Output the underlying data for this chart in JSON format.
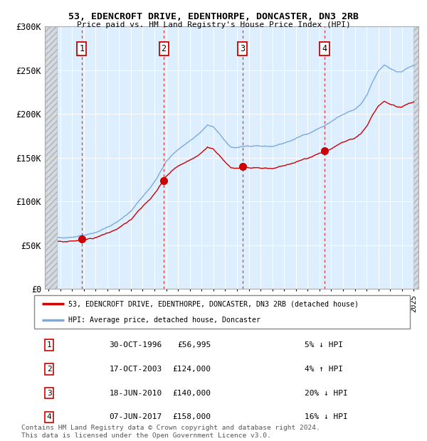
{
  "title1": "53, EDENCROFT DRIVE, EDENTHORPE, DONCASTER, DN3 2RB",
  "title2": "Price paid vs. HM Land Registry's House Price Index (HPI)",
  "ylim": [
    0,
    300000
  ],
  "yticks": [
    0,
    50000,
    100000,
    150000,
    200000,
    250000,
    300000
  ],
  "ytick_labels": [
    "£0",
    "£50K",
    "£100K",
    "£150K",
    "£200K",
    "£250K",
    "£300K"
  ],
  "xmin": 1993.7,
  "xmax": 2025.4,
  "sales": [
    {
      "num": 1,
      "year": 1996.83,
      "price": 56995
    },
    {
      "num": 2,
      "year": 2003.79,
      "price": 124000
    },
    {
      "num": 3,
      "year": 2010.46,
      "price": 140000
    },
    {
      "num": 4,
      "year": 2017.43,
      "price": 158000
    }
  ],
  "legend_line1": "53, EDENCROFT DRIVE, EDENTHORPE, DONCASTER, DN3 2RB (detached house)",
  "legend_line2": "HPI: Average price, detached house, Doncaster",
  "transactions": [
    {
      "num": 1,
      "date": "30-OCT-1996",
      "price": "£56,995",
      "hpi": "5% ↓ HPI"
    },
    {
      "num": 2,
      "date": "17-OCT-2003",
      "price": "£124,000",
      "hpi": "4% ↑ HPI"
    },
    {
      "num": 3,
      "date": "18-JUN-2010",
      "price": "£140,000",
      "hpi": "20% ↓ HPI"
    },
    {
      "num": 4,
      "date": "07-JUN-2017",
      "price": "£158,000",
      "hpi": "16% ↓ HPI"
    }
  ],
  "footer": "Contains HM Land Registry data © Crown copyright and database right 2024.\nThis data is licensed under the Open Government Licence v3.0.",
  "property_line_color": "#cc0000",
  "hpi_line_color": "#7aaadd",
  "bg_color": "#ddeeff",
  "sale_marker_color": "#cc0000"
}
